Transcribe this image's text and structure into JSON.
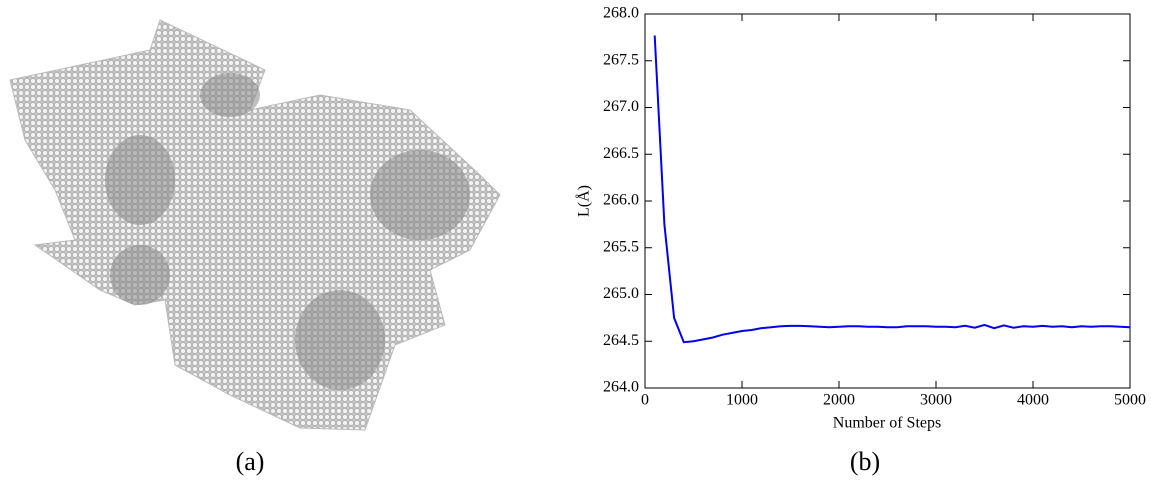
{
  "captions": [
    "(a)",
    "(b)"
  ],
  "chart_data": {
    "type": "line",
    "xlabel": "Number of Steps",
    "ylabel": "L(Å)",
    "x": [
      100,
      200,
      300,
      400,
      500,
      600,
      700,
      800,
      900,
      1000,
      1100,
      1200,
      1300,
      1400,
      1500,
      1600,
      1700,
      1800,
      1900,
      2000,
      2100,
      2200,
      2300,
      2400,
      2500,
      2600,
      2700,
      2800,
      2900,
      3000,
      3100,
      3200,
      3300,
      3400,
      3500,
      3600,
      3700,
      3800,
      3900,
      4000,
      4100,
      4200,
      4300,
      4400,
      4500,
      4600,
      4700,
      4800,
      4900,
      5000
    ],
    "series": [
      {
        "color": "#0000ee",
        "values": [
          267.77,
          265.75,
          264.75,
          264.49,
          264.5,
          264.52,
          264.54,
          264.57,
          264.59,
          264.61,
          264.62,
          264.64,
          264.65,
          264.66,
          264.665,
          264.665,
          264.66,
          264.655,
          264.65,
          264.655,
          264.66,
          264.66,
          264.655,
          264.655,
          264.65,
          264.65,
          264.66,
          264.66,
          264.66,
          264.655,
          264.655,
          264.65,
          264.665,
          264.645,
          264.675,
          264.64,
          264.67,
          264.645,
          264.66,
          264.655,
          264.665,
          264.655,
          264.66,
          264.65,
          264.66,
          264.655,
          264.66,
          264.66,
          264.655,
          264.65
        ]
      }
    ],
    "xlim": [
      0,
      5000
    ],
    "xticks": [
      0,
      1000,
      2000,
      3000,
      4000,
      5000
    ],
    "ylim": [
      264,
      268
    ],
    "yticks": [
      {
        "value": 264,
        "label": "264.0"
      },
      {
        "value": 264.5,
        "label": "264.5"
      },
      {
        "value": 265,
        "label": "265.0"
      },
      {
        "value": 265.5,
        "label": "265.5"
      },
      {
        "value": 266,
        "label": "266.0"
      },
      {
        "value": 266.5,
        "label": "266.5"
      },
      {
        "value": 267,
        "label": "267.0"
      },
      {
        "value": 267.5,
        "label": "267.5"
      },
      {
        "value": 268,
        "label": "268.0"
      }
    ]
  }
}
